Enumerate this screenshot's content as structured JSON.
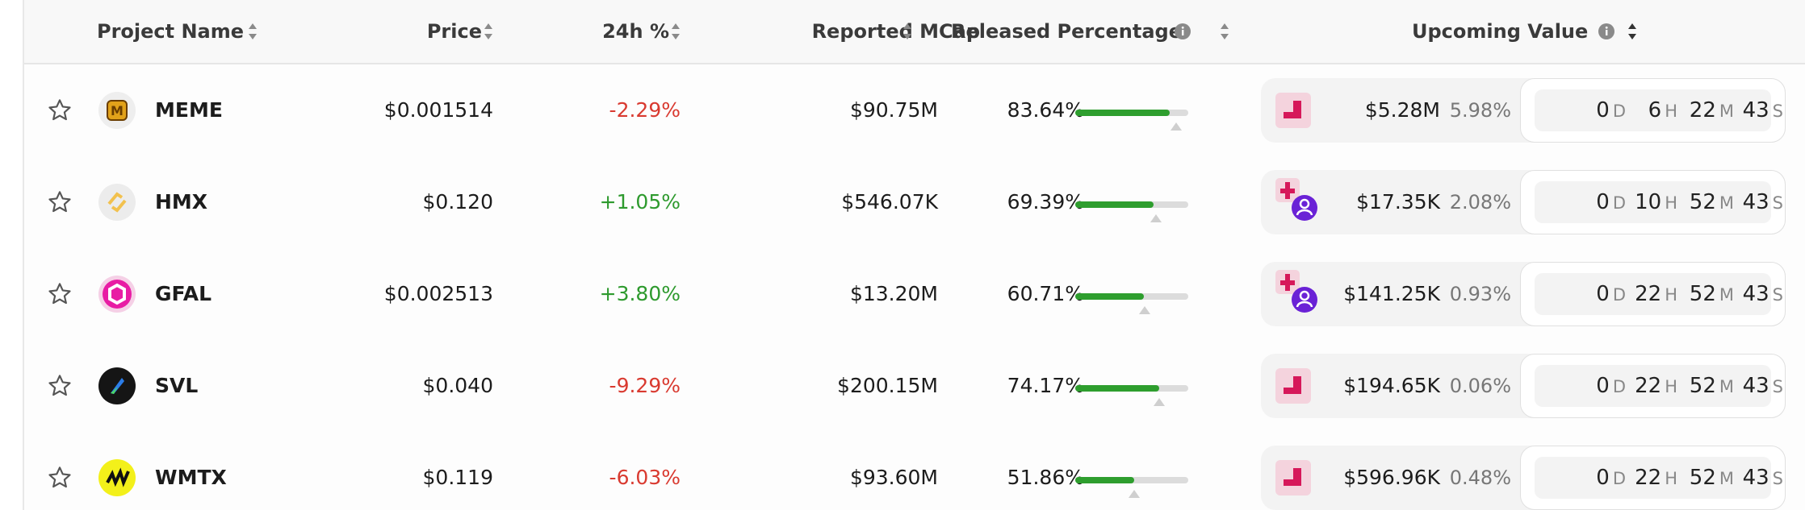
{
  "header": {
    "columns": [
      "Project Name",
      "Price",
      "24h %",
      "Reported MCap",
      "Released Percentage",
      "Upcoming Value"
    ]
  },
  "countdown_units": [
    "D",
    "H",
    "M",
    "S"
  ],
  "table": {
    "rows": [
      {
        "name": "MEME",
        "price": "$0.001514",
        "change": "-2.29%",
        "mcap": "$90.75M",
        "released": "83.64%",
        "upcoming_value": "$5.28M",
        "upcoming_pct": "5.98%",
        "countdown": [
          "0",
          "6",
          "22",
          "43"
        ]
      },
      {
        "name": "HMX",
        "price": "$0.120",
        "change": "+1.05%",
        "mcap": "$546.07K",
        "released": "69.39%",
        "upcoming_value": "$17.35K",
        "upcoming_pct": "2.08%",
        "countdown": [
          "0",
          "10",
          "52",
          "43"
        ]
      },
      {
        "name": "GFAL",
        "price": "$0.002513",
        "change": "+3.80%",
        "mcap": "$13.20M",
        "released": "60.71%",
        "upcoming_value": "$141.25K",
        "upcoming_pct": "0.93%",
        "countdown": [
          "0",
          "22",
          "52",
          "43"
        ]
      },
      {
        "name": "SVL",
        "price": "$0.040",
        "change": "-9.29%",
        "mcap": "$200.15M",
        "released": "74.17%",
        "upcoming_value": "$194.65K",
        "upcoming_pct": "0.06%",
        "countdown": [
          "0",
          "22",
          "52",
          "43"
        ]
      },
      {
        "name": "WMTX",
        "price": "$0.119",
        "change": "-6.03%",
        "mcap": "$93.60M",
        "released": "51.86%",
        "upcoming_value": "$596.96K",
        "upcoming_pct": "0.48%",
        "countdown": [
          "0",
          "22",
          "52",
          "43"
        ]
      }
    ]
  }
}
